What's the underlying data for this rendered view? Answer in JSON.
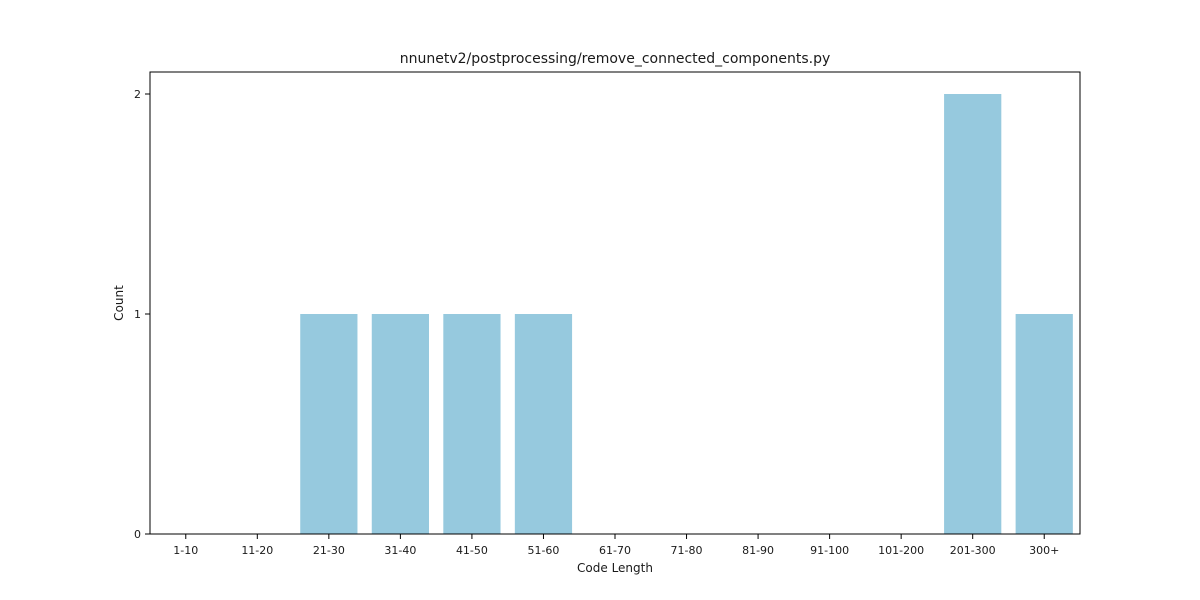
{
  "chart_data": {
    "type": "bar",
    "title": "nnunetv2/postprocessing/remove_connected_components.py",
    "xlabel": "Code Length",
    "ylabel": "Count",
    "categories": [
      "1-10",
      "11-20",
      "21-30",
      "31-40",
      "41-50",
      "51-60",
      "61-70",
      "71-80",
      "81-90",
      "91-100",
      "101-200",
      "201-300",
      "300+"
    ],
    "values": [
      0,
      0,
      1,
      1,
      1,
      1,
      0,
      0,
      0,
      0,
      0,
      2,
      1
    ],
    "ylim": [
      0,
      2.1
    ],
    "yticks": [
      0,
      1,
      2
    ],
    "grid": false,
    "bar_color": "#96c9de"
  }
}
